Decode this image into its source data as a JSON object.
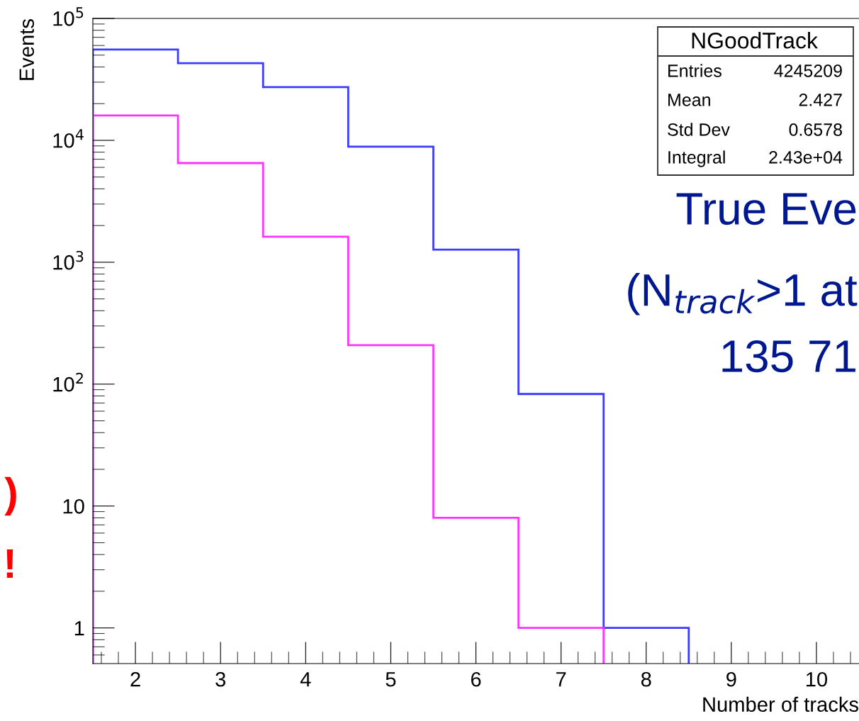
{
  "chart_data": {
    "type": "histogram",
    "xlabel": "Number of tracks",
    "ylabel": "Events",
    "bins": [
      1.5,
      2.5,
      3.5,
      4.5,
      5.5,
      6.5,
      7.5,
      8.5
    ],
    "series": [
      {
        "color": "#3b3bff",
        "values": [
          55500,
          43000,
          27300,
          8870,
          1270,
          83,
          1
        ]
      },
      {
        "color": "#ff33ff",
        "bins": [
          1.5,
          2.5,
          3.5,
          4.5,
          5.5,
          6.5,
          7.5
        ],
        "values": [
          16000,
          6510,
          1620,
          209,
          8,
          1
        ]
      }
    ],
    "log": "y",
    "xlim": [
      1.5,
      10.5
    ],
    "ylim": [
      0.51,
      100000
    ],
    "xticks": [
      2,
      3,
      4,
      5,
      6,
      7,
      8,
      9,
      10
    ],
    "yticks": [
      1,
      10,
      {
        "value": 100,
        "label": "10$^{2}$"
      },
      {
        "value": 1000,
        "label": "10$^{3}$"
      },
      {
        "value": 10000,
        "label": "10$^{4}$"
      },
      {
        "value": 100000,
        "label": "10$^{5}$"
      }
    ],
    "grid": false,
    "legend": false,
    "annotations": [
      "NGoodTrack",
      "Entries",
      "4245209",
      "Mean",
      "2.427",
      "Std Dev",
      "0.6578",
      "Integral",
      "2.43e+04",
      "True Eve",
      "(N$_{track}$>1 at",
      "135 71",
      ")",
      "!"
    ]
  }
}
